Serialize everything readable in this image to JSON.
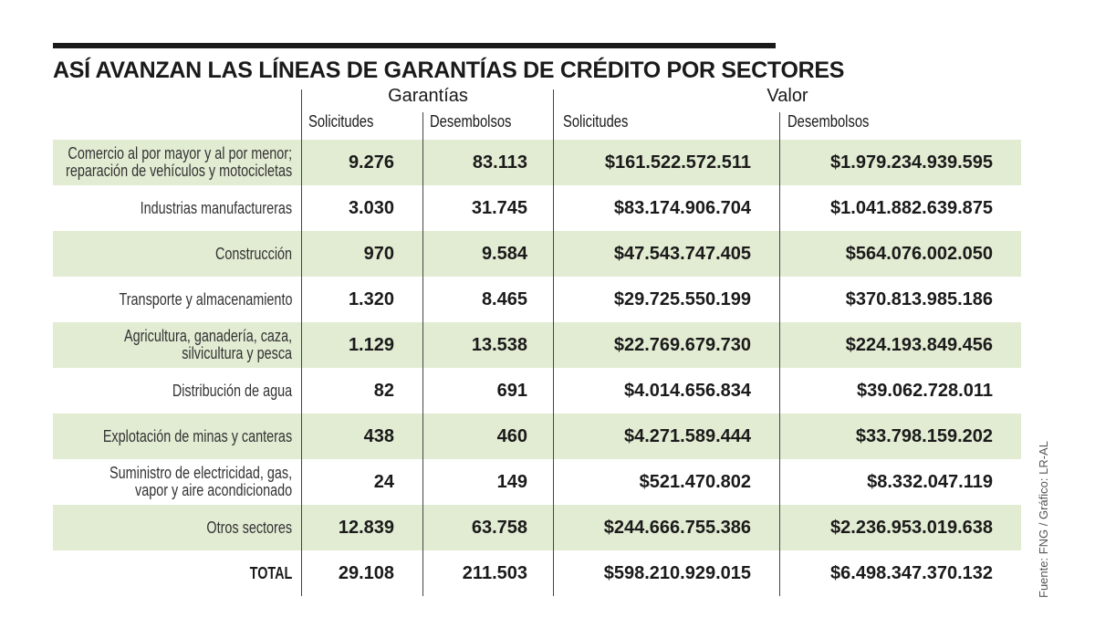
{
  "chart_data": {
    "type": "table",
    "title": "ASÍ AVANZAN LAS LÍNEAS DE GARANTÍAS DE CRÉDITO POR SECTORES",
    "groups": [
      "Garantías",
      "Valor"
    ],
    "columns": [
      "Solicitudes",
      "Desembolsos",
      "Solicitudes",
      "Desembolsos"
    ],
    "rows": [
      {
        "sector": [
          "Comercio al por mayor y al por menor;",
          "reparación de vehículos y motocicletas"
        ],
        "values": [
          "9.276",
          "83.113",
          "$161.522.572.511",
          "$1.979.234.939.595"
        ],
        "shaded": true
      },
      {
        "sector": [
          "Industrias manufactureras"
        ],
        "values": [
          "3.030",
          "31.745",
          "$83.174.906.704",
          "$1.041.882.639.875"
        ],
        "shaded": false
      },
      {
        "sector": [
          "Construcción"
        ],
        "values": [
          "970",
          "9.584",
          "$47.543.747.405",
          "$564.076.002.050"
        ],
        "shaded": true
      },
      {
        "sector": [
          "Transporte y almacenamiento"
        ],
        "values": [
          "1.320",
          "8.465",
          "$29.725.550.199",
          "$370.813.985.186"
        ],
        "shaded": false
      },
      {
        "sector": [
          "Agricultura, ganadería, caza,",
          "silvicultura y pesca"
        ],
        "values": [
          "1.129",
          "13.538",
          "$22.769.679.730",
          "$224.193.849.456"
        ],
        "shaded": true
      },
      {
        "sector": [
          "Distribución de agua"
        ],
        "values": [
          "82",
          "691",
          "$4.014.656.834",
          "$39.062.728.011"
        ],
        "shaded": false
      },
      {
        "sector": [
          "Explotación de minas y canteras"
        ],
        "values": [
          "438",
          "460",
          "$4.271.589.444",
          "$33.798.159.202"
        ],
        "shaded": true
      },
      {
        "sector": [
          "Suministro de electricidad, gas,",
          "vapor y aire acondicionado"
        ],
        "values": [
          "24",
          "149",
          "$521.470.802",
          "$8.332.047.119"
        ],
        "shaded": false
      },
      {
        "sector": [
          "Otros sectores"
        ],
        "values": [
          "12.839",
          "63.758",
          "$244.666.755.386",
          "$2.236.953.019.638"
        ],
        "shaded": true
      },
      {
        "sector": [
          "TOTAL"
        ],
        "values": [
          "29.108",
          "211.503",
          "$598.210.929.015",
          "$6.498.347.370.132"
        ],
        "shaded": false,
        "total": true
      }
    ],
    "source": "Fuente: FNG / Gráfico: LR-AL"
  },
  "colors": {
    "shade": "#e2ecd3",
    "text": "#1a1a1a",
    "rule": "#1a1a1a"
  }
}
